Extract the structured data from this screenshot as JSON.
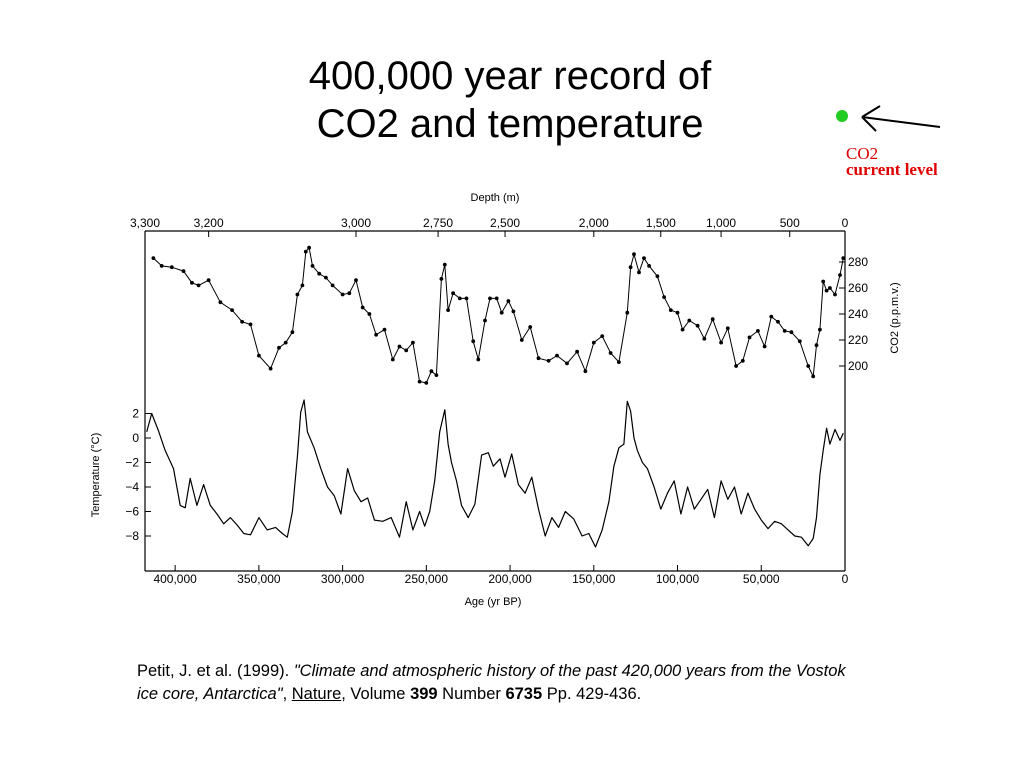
{
  "slide": {
    "title_line1": "400,000 year record of",
    "title_line2": "CO2 and temperature",
    "annotation_line1": "CO2",
    "annotation_line2": "current level",
    "annotation_marker_color": "#22cc22",
    "annotation_text_color": "#e00000"
  },
  "citation": {
    "authors": "Petit, J. et al. (1999). ",
    "article_title": "\"Climate and atmospheric history of the past 420,000 years from the Vostok ice core, Antarctica\"",
    "sep1": ", ",
    "journal": "Nature",
    "sep2": ", Volume ",
    "volume": "399",
    "sep3": " Number ",
    "number": "6735",
    "pages": " Pp. 429-436."
  },
  "chart_data": {
    "type": "line",
    "top_axis": {
      "label": "Depth (m)",
      "ticks": [
        {
          "label": "3,300",
          "age": 418000
        },
        {
          "label": "3,200",
          "age": 380000
        },
        {
          "label": "3,000",
          "age": 292000
        },
        {
          "label": "2,750",
          "age": 243000
        },
        {
          "label": "2,500",
          "age": 203000
        },
        {
          "label": "2,000",
          "age": 150000
        },
        {
          "label": "1,500",
          "age": 110000
        },
        {
          "label": "1,000",
          "age": 74000
        },
        {
          "label": "500",
          "age": 33000
        },
        {
          "label": "0",
          "age": 0
        }
      ]
    },
    "bottom_axis": {
      "label": "Age (yr BP)",
      "range": [
        418000,
        0
      ],
      "ticks": [
        {
          "label": "400,000",
          "value": 400000
        },
        {
          "label": "350,000",
          "value": 350000
        },
        {
          "label": "300,000",
          "value": 300000
        },
        {
          "label": "250,000",
          "value": 250000
        },
        {
          "label": "200,000",
          "value": 200000
        },
        {
          "label": "150,000",
          "value": 150000
        },
        {
          "label": "100,000",
          "value": 100000
        },
        {
          "label": "50,000",
          "value": 50000
        },
        {
          "label": "0",
          "value": 0
        }
      ]
    },
    "co2_axis": {
      "label": "CO2 (p.p.m.v.)",
      "range": [
        180,
        300
      ],
      "ticks": [
        "200",
        "220",
        "240",
        "260",
        "280"
      ]
    },
    "temp_axis": {
      "label": "Temperature (°C)",
      "range": [
        -10,
        3
      ],
      "ticks": [
        "2",
        "0",
        "−2",
        "−4",
        "−6",
        "−8"
      ]
    },
    "series": [
      {
        "name": "CO2",
        "unit": "p.p.m.v.",
        "x": [
          413000,
          408000,
          402000,
          395000,
          390000,
          386000,
          380000,
          373000,
          366000,
          360000,
          355000,
          350000,
          343000,
          338000,
          334000,
          330000,
          327000,
          324000,
          322000,
          320000,
          318000,
          314000,
          310000,
          306000,
          300000,
          296000,
          292000,
          288000,
          284000,
          280000,
          275000,
          270000,
          266000,
          262000,
          258000,
          254000,
          250000,
          247000,
          244000,
          241000,
          239000,
          237000,
          234000,
          230000,
          226000,
          222000,
          219000,
          215000,
          212000,
          208000,
          205000,
          201000,
          198000,
          193000,
          188000,
          183000,
          177000,
          172000,
          166000,
          160000,
          155000,
          150000,
          145000,
          140000,
          135000,
          130000,
          128000,
          126000,
          123000,
          120000,
          117000,
          112000,
          108000,
          104000,
          100000,
          97000,
          93000,
          88000,
          84000,
          79000,
          74000,
          70000,
          65000,
          61000,
          57000,
          52000,
          48000,
          44000,
          40000,
          36000,
          32000,
          27000,
          22000,
          19000,
          17000,
          15000,
          13000,
          11000,
          9000,
          6000,
          3000,
          1000
        ],
        "y": [
          283,
          277,
          276,
          273,
          264,
          262,
          266,
          249,
          243,
          234,
          232,
          208,
          198,
          214,
          218,
          226,
          255,
          262,
          288,
          291,
          277,
          271,
          268,
          262,
          255,
          256,
          266,
          245,
          240,
          224,
          228,
          205,
          215,
          212,
          218,
          188,
          187,
          196,
          193,
          267,
          278,
          243,
          256,
          252,
          252,
          219,
          205,
          235,
          252,
          252,
          241,
          250,
          242,
          220,
          230,
          206,
          204,
          208,
          202,
          211,
          196,
          218,
          223,
          210,
          203,
          241,
          276,
          286,
          272,
          283,
          277,
          269,
          253,
          243,
          241,
          228,
          235,
          231,
          221,
          236,
          218,
          229,
          200,
          204,
          222,
          227,
          215,
          238,
          234,
          227,
          226,
          219,
          200,
          192,
          216,
          228,
          265,
          258,
          260,
          255,
          270,
          283
        ]
      },
      {
        "name": "Temperature",
        "unit": "°C",
        "x": [
          417000,
          414000,
          410000,
          406000,
          401000,
          397000,
          394000,
          391000,
          387000,
          383000,
          379000,
          375000,
          371000,
          367000,
          363000,
          359000,
          355000,
          350000,
          345000,
          340000,
          336000,
          333000,
          330000,
          327000,
          325000,
          323000,
          321000,
          317000,
          313000,
          309000,
          305000,
          301000,
          297000,
          293000,
          289000,
          285000,
          281000,
          276000,
          271000,
          266000,
          262000,
          258000,
          254000,
          251000,
          248000,
          245000,
          242000,
          239000,
          237000,
          235000,
          232000,
          229000,
          225000,
          221000,
          217000,
          213000,
          210000,
          206000,
          203000,
          199000,
          195000,
          191000,
          187000,
          183000,
          179000,
          175000,
          171000,
          167000,
          162000,
          157000,
          153000,
          149000,
          145000,
          141000,
          138000,
          135000,
          132000,
          130000,
          128000,
          126000,
          124000,
          121000,
          118000,
          114000,
          110000,
          106000,
          102000,
          98000,
          94000,
          90000,
          86000,
          82000,
          78000,
          74000,
          70000,
          66000,
          62000,
          58000,
          54000,
          50000,
          46000,
          42000,
          38000,
          34000,
          30000,
          26000,
          22000,
          19000,
          17000,
          15000,
          13000,
          11000,
          9000,
          6000,
          3000,
          1000
        ],
        "y": [
          0.5,
          2,
          0.6,
          -1,
          -2.5,
          -5.5,
          -5.7,
          -3.3,
          -5.5,
          -3.8,
          -5.5,
          -6.2,
          -7,
          -6.5,
          -7.1,
          -7.8,
          -7.9,
          -6.5,
          -7.5,
          -7.3,
          -7.8,
          -8.1,
          -6,
          -1.5,
          2.1,
          3.1,
          0.5,
          -0.8,
          -2.5,
          -4,
          -4.7,
          -6.2,
          -2.5,
          -4.3,
          -5.2,
          -4.9,
          -6.7,
          -6.8,
          -6.5,
          -8.1,
          -5.2,
          -7.5,
          -6,
          -7.2,
          -6,
          -3.5,
          0.5,
          2.3,
          -0.5,
          -2,
          -3.5,
          -5.5,
          -6.5,
          -5.4,
          -1.4,
          -1.2,
          -2.3,
          -1.7,
          -3.2,
          -1.3,
          -3.8,
          -4.5,
          -3.2,
          -5.8,
          -8,
          -6.5,
          -7.3,
          -6,
          -6.6,
          -8,
          -7.8,
          -8.9,
          -7.5,
          -5.2,
          -2.3,
          -0.8,
          -0.5,
          3,
          2.2,
          0,
          -1,
          -2,
          -2.5,
          -4,
          -5.8,
          -4.5,
          -3.5,
          -6.2,
          -4,
          -5.8,
          -5,
          -4.2,
          -6.5,
          -3.5,
          -5,
          -4,
          -6.2,
          -4.5,
          -5.8,
          -6.7,
          -7.4,
          -6.8,
          -7,
          -7.5,
          -8,
          -8.1,
          -8.8,
          -8.2,
          -6.5,
          -3,
          -1,
          0.8,
          -0.5,
          0.7,
          -0.2,
          0.4
        ]
      }
    ]
  }
}
